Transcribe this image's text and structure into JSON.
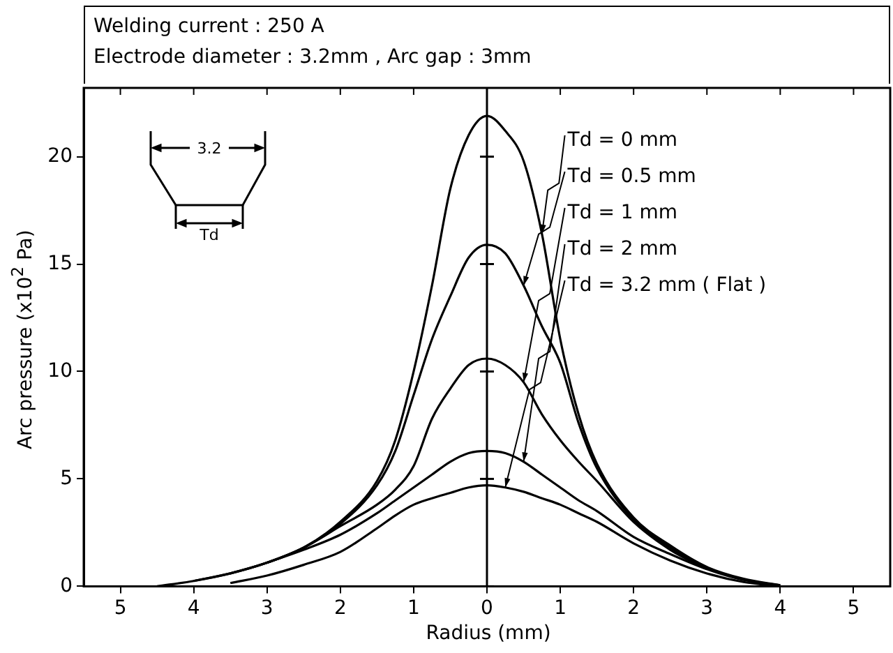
{
  "chart_data": {
    "type": "line",
    "title": "Welding current : 250 A",
    "subtitle": "Electrode diameter : 3.2mm ,  Arc gap : 3mm",
    "xlabel": "Radius (mm)",
    "ylabel": "Arc pressure (x10$^{2}$ Pa)",
    "x": [
      -4.5,
      -4,
      -3.5,
      -3,
      -2.5,
      -2,
      -1.5,
      -1.25,
      -1,
      -0.75,
      -0.5,
      -0.25,
      0,
      0.25,
      0.5,
      0.75,
      1,
      1.25,
      1.5,
      2,
      2.5,
      3,
      3.5,
      4
    ],
    "series": [
      {
        "name": "Td = 0 mm",
        "color": "#000000",
        "values": [
          0,
          0.25,
          0.6,
          1.1,
          1.8,
          3.0,
          4.9,
          6.8,
          10,
          14,
          18.5,
          21,
          21.9,
          21.2,
          19.8,
          16.4,
          11.5,
          8.0,
          5.7,
          3.2,
          1.9,
          0.9,
          0.35,
          0.05
        ]
      },
      {
        "name": "Td = 0.5 mm",
        "color": "#000000",
        "values": [
          null,
          0.25,
          0.6,
          1.1,
          1.8,
          2.9,
          4.7,
          6.3,
          8.9,
          11.5,
          13.5,
          15.3,
          15.9,
          15.5,
          14.0,
          12.1,
          10.4,
          7.6,
          5.5,
          3.1,
          1.8,
          0.85,
          0.3,
          null
        ]
      },
      {
        "name": "Td = 1 mm",
        "color": "#000000",
        "values": [
          null,
          null,
          0.6,
          1.1,
          1.8,
          2.8,
          3.8,
          4.5,
          5.6,
          7.8,
          9.2,
          10.3,
          10.6,
          10.3,
          9.5,
          8.0,
          6.8,
          5.8,
          4.9,
          3.0,
          1.7,
          0.8,
          null,
          null
        ]
      },
      {
        "name": "Td = 2 mm",
        "color": "#000000",
        "values": [
          null,
          null,
          null,
          1.1,
          1.7,
          2.4,
          3.4,
          4.0,
          4.6,
          5.2,
          5.8,
          6.2,
          6.3,
          6.2,
          5.8,
          5.2,
          4.6,
          4.0,
          3.5,
          2.3,
          1.5,
          0.8,
          0.3,
          0.05
        ]
      },
      {
        "name": "Td = 3.2 mm ( Flat )",
        "color": "#000000",
        "values": [
          null,
          null,
          0.15,
          0.5,
          1.0,
          1.6,
          2.7,
          3.3,
          3.8,
          4.1,
          4.35,
          4.6,
          4.7,
          4.6,
          4.4,
          4.1,
          3.8,
          3.4,
          3.0,
          2.0,
          1.2,
          0.6,
          0.2,
          0
        ]
      }
    ],
    "xlim": [
      -5.5,
      5.5
    ],
    "xticks": [
      {
        "value": -5,
        "label": "5"
      },
      {
        "value": -4,
        "label": "4"
      },
      {
        "value": -3,
        "label": "3"
      },
      {
        "value": -2,
        "label": "2"
      },
      {
        "value": -1,
        "label": "1"
      },
      0,
      1,
      2,
      3,
      4,
      5
    ],
    "ylim": [
      0,
      23.2
    ],
    "yticks": [
      0,
      5,
      10,
      15,
      20
    ],
    "ref_lines": [
      {
        "axis": "x",
        "value": 0
      }
    ],
    "annotations": [
      "3.2",
      "Td"
    ],
    "grid": false,
    "legend": "top right",
    "marker": "none",
    "line_style": "solid"
  }
}
